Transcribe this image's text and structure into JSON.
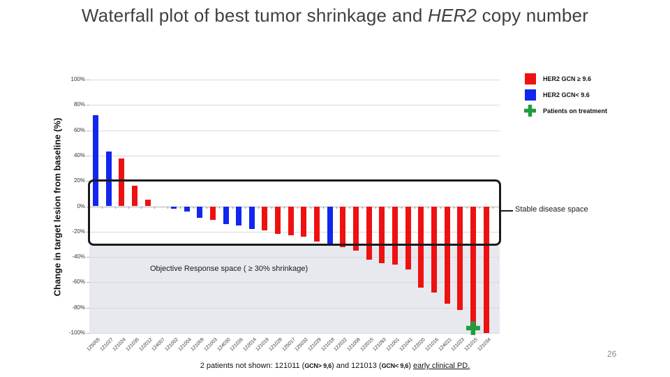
{
  "slide": {
    "title": {
      "part1": "Waterfall plot of best tumor shrinkage and ",
      "part2_italic": "HER2",
      "part3": " copy number"
    },
    "page_number": "26",
    "footer": {
      "part1": "2 patients not shown: 121011 (",
      "gcn1": "GCN> 9,6",
      "part2": ") and 121013 (",
      "gcn2": "GCN< 9,6",
      "part3": ") ",
      "underlined": "early clinical PD."
    }
  },
  "legend": {
    "items": [
      {
        "swatch": "red-square",
        "label": "HER2 GCN ≥ 9.6"
      },
      {
        "swatch": "blue-square",
        "label": "HER2 GCN< 9.6"
      },
      {
        "swatch": "green-cross",
        "label": "Patients on treatment"
      }
    ]
  },
  "annotations": {
    "stable_space": "Stable disease space",
    "objective_space": "Objective Response space ( ≥ 30% shrinkage)"
  },
  "colors": {
    "red": "#ee1111",
    "blue": "#1226ee",
    "green": "#1e9e3e",
    "gray_area": "#e7e9ef",
    "gridline": "#d9d9d9",
    "box_border": "#1a1a1a",
    "title_text": "#404040"
  },
  "chart_data": {
    "type": "bar",
    "title": "",
    "xlabel": "",
    "ylabel": "Change in target lesion from baseline (%)",
    "ylim": [
      -100,
      100
    ],
    "grid": true,
    "legend_position": "top-right",
    "y_tick_labels": [
      "100%",
      "80%",
      "60%",
      "40%",
      "20%",
      "0%",
      "-20%",
      "-40%",
      "-60%",
      "-80%",
      "-100%"
    ],
    "y_tick_values": [
      100,
      80,
      60,
      40,
      20,
      0,
      -20,
      -40,
      -60,
      -80,
      -100
    ],
    "stable_disease_band": [
      20,
      -30
    ],
    "objective_response_threshold": -30,
    "patients": [
      {
        "id": "125005",
        "value": 72,
        "group": "low"
      },
      {
        "id": "121027",
        "value": 43,
        "group": "low"
      },
      {
        "id": "121024",
        "value": 38,
        "group": "high"
      },
      {
        "id": "121035",
        "value": 16,
        "group": "high"
      },
      {
        "id": "122012",
        "value": 5,
        "group": "high"
      },
      {
        "id": "124007",
        "value": 0,
        "group": null
      },
      {
        "id": "121002",
        "value": -2,
        "group": "low"
      },
      {
        "id": "121004",
        "value": -4,
        "group": "low"
      },
      {
        "id": "121009",
        "value": -9,
        "group": "low"
      },
      {
        "id": "121003",
        "value": -11,
        "group": "high"
      },
      {
        "id": "124030",
        "value": -14,
        "group": "low"
      },
      {
        "id": "121026",
        "value": -15,
        "group": "low"
      },
      {
        "id": "122014",
        "value": -18,
        "group": "low"
      },
      {
        "id": "121019",
        "value": -19,
        "group": "high"
      },
      {
        "id": "121028",
        "value": -22,
        "group": "high"
      },
      {
        "id": "125017",
        "value": -23,
        "group": "high"
      },
      {
        "id": "125032",
        "value": -24,
        "group": "high"
      },
      {
        "id": "121029",
        "value": -28,
        "group": "high"
      },
      {
        "id": "121018",
        "value": -30,
        "group": "low"
      },
      {
        "id": "122022",
        "value": -32,
        "group": "high"
      },
      {
        "id": "121008",
        "value": -35,
        "group": "high"
      },
      {
        "id": "122015",
        "value": -42,
        "group": "high"
      },
      {
        "id": "121093",
        "value": -45,
        "group": "high"
      },
      {
        "id": "121001",
        "value": -46,
        "group": "high"
      },
      {
        "id": "121041",
        "value": -50,
        "group": "high"
      },
      {
        "id": "122020",
        "value": -64,
        "group": "high"
      },
      {
        "id": "121016",
        "value": -68,
        "group": "high"
      },
      {
        "id": "124021",
        "value": -77,
        "group": "high"
      },
      {
        "id": "121023",
        "value": -82,
        "group": "high"
      },
      {
        "id": "121015",
        "value": -95,
        "group": "high",
        "on_treatment": true
      },
      {
        "id": "121034",
        "value": -100,
        "group": "high"
      }
    ]
  }
}
